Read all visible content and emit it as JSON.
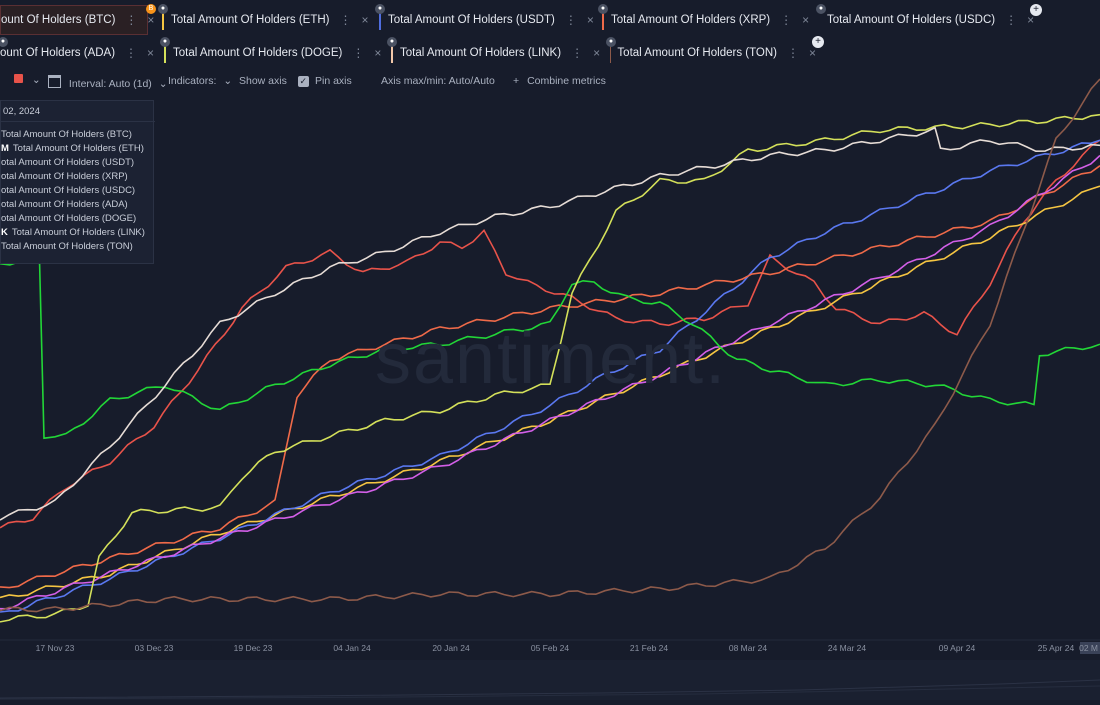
{
  "tabs_row1": [
    {
      "label": "Total Amount Of Holders (BTC)",
      "color": "#e8534a",
      "active": true,
      "badge": "B",
      "badge_color": "#f7931a",
      "partial": "ount Of Holders (BTC)"
    },
    {
      "label": "Total Amount Of Holders (ETH)",
      "color": "#f5c542"
    },
    {
      "label": "Total Amount Of Holders (USDT)",
      "color": "#4f6dde"
    },
    {
      "label": "Total Amount Of Holders (XRP)",
      "color": "#ef6a49"
    },
    {
      "label": "Total Amount Of Holders (USDC)",
      "color": "#d35fe8"
    }
  ],
  "tabs_row2": [
    {
      "label": "Total Amount Of Holders (ADA)",
      "color": "#3a4cd0",
      "partial": "ount Of Holders (ADA)"
    },
    {
      "label": "Total Amount Of Holders (DOGE)",
      "color": "#d4e05a"
    },
    {
      "label": "Total Amount Of Holders (LINK)",
      "color": "#f2c7a9"
    },
    {
      "label": "Total Amount Of Holders (TON)",
      "color": "#8d5a4a"
    }
  ],
  "toolbar": {
    "interval": "Interval: Auto (1d)",
    "indicators": "Indicators:",
    "show_axis": "Show axis",
    "pin_axis": "Pin axis",
    "axis_maxmin": "Axis max/min: Auto/Auto",
    "combine": "Combine metrics",
    "plus": "+",
    "color_swatch": "#e8534a"
  },
  "tooltip": {
    "date": "02, 2024",
    "items": [
      {
        "prefix": "",
        "label": "Total Amount Of Holders (BTC)"
      },
      {
        "prefix": "M",
        "label": "Total Amount Of Holders (ETH)"
      },
      {
        "prefix": "",
        "label": "otal Amount Of Holders (USDT)"
      },
      {
        "prefix": "",
        "label": "otal Amount Of Holders (XRP)"
      },
      {
        "prefix": "",
        "label": "otal Amount Of Holders (USDC)"
      },
      {
        "prefix": "",
        "label": "otal Amount Of Holders (ADA)"
      },
      {
        "prefix": "",
        "label": "otal Amount Of Holders (DOGE)"
      },
      {
        "prefix": "K",
        "label": "Total Amount Of Holders (LINK)"
      },
      {
        "prefix": "",
        "label": "Total Amount Of Holders (TON)"
      }
    ]
  },
  "watermark": "santiment.",
  "icons": {
    "dots": "⋮",
    "close": "×",
    "add": "+",
    "lock": "●",
    "checkmark": "✓",
    "caret": "⌄"
  },
  "chart_data": {
    "type": "line",
    "x_ticks": [
      "17 Nov 23",
      "03 Dec 23",
      "19 Dec 23",
      "04 Jan 24",
      "20 Jan 24",
      "05 Feb 24",
      "21 Feb 24",
      "08 Mar 24",
      "24 Mar 24",
      "09 Apr 24",
      "25 Apr 24",
      "02 M"
    ],
    "x_tick_pos": [
      0.05,
      0.14,
      0.23,
      0.32,
      0.41,
      0.5,
      0.59,
      0.68,
      0.77,
      0.87,
      0.96,
      1.0
    ],
    "ylim": [
      0,
      100
    ],
    "series": [
      {
        "name": "Total Amount Of Holders (BTC)",
        "color": "#e8534a",
        "points": [
          [
            0,
            22
          ],
          [
            0.03,
            24
          ],
          [
            0.06,
            30
          ],
          [
            0.1,
            35
          ],
          [
            0.14,
            42
          ],
          [
            0.18,
            53
          ],
          [
            0.22,
            65
          ],
          [
            0.26,
            73
          ],
          [
            0.3,
            76
          ],
          [
            0.33,
            72
          ],
          [
            0.37,
            74
          ],
          [
            0.4,
            78
          ],
          [
            0.42,
            77
          ],
          [
            0.44,
            80
          ],
          [
            0.46,
            72
          ],
          [
            0.48,
            70
          ],
          [
            0.52,
            67
          ],
          [
            0.56,
            63
          ],
          [
            0.6,
            62
          ],
          [
            0.64,
            63
          ],
          [
            0.68,
            66
          ],
          [
            0.7,
            75
          ],
          [
            0.74,
            70
          ],
          [
            0.76,
            65
          ],
          [
            0.8,
            62
          ],
          [
            0.84,
            64
          ],
          [
            0.87,
            60
          ],
          [
            0.9,
            70
          ],
          [
            0.93,
            82
          ],
          [
            0.96,
            90
          ],
          [
            1.0,
            98
          ]
        ]
      },
      {
        "name": "Total Amount Of Holders (ETH)",
        "color": "#f5c542",
        "points": [
          [
            0,
            8
          ],
          [
            0.1,
            13
          ],
          [
            0.2,
            21
          ],
          [
            0.3,
            28
          ],
          [
            0.4,
            35
          ],
          [
            0.5,
            43
          ],
          [
            0.6,
            52
          ],
          [
            0.7,
            61
          ],
          [
            0.8,
            70
          ],
          [
            0.9,
            79
          ],
          [
            0.95,
            84
          ],
          [
            1.0,
            89
          ]
        ]
      },
      {
        "name": "Total Amount Of Holders (USDT)",
        "color": "#5a78f0",
        "points": [
          [
            0,
            5
          ],
          [
            0.1,
            12
          ],
          [
            0.2,
            20
          ],
          [
            0.3,
            29
          ],
          [
            0.4,
            36
          ],
          [
            0.45,
            41
          ],
          [
            0.5,
            46
          ],
          [
            0.55,
            52
          ],
          [
            0.6,
            57
          ],
          [
            0.65,
            66
          ],
          [
            0.7,
            75
          ],
          [
            0.75,
            80
          ],
          [
            0.8,
            84
          ],
          [
            0.85,
            88
          ],
          [
            0.9,
            92
          ],
          [
            0.95,
            95
          ],
          [
            1.0,
            98
          ]
        ]
      },
      {
        "name": "Total Amount Of Holders (XRP)",
        "color": "#ef6a49",
        "points": [
          [
            0,
            10
          ],
          [
            0.1,
            16
          ],
          [
            0.2,
            22
          ],
          [
            0.25,
            27
          ],
          [
            0.27,
            48
          ],
          [
            0.3,
            55
          ],
          [
            0.35,
            58
          ],
          [
            0.4,
            61
          ],
          [
            0.5,
            65
          ],
          [
            0.6,
            68
          ],
          [
            0.7,
            72
          ],
          [
            0.8,
            77
          ],
          [
            0.9,
            82
          ],
          [
            1.0,
            93
          ]
        ]
      },
      {
        "name": "Total Amount Of Holders (USDC)",
        "color": "#d35fe8",
        "points": [
          [
            0,
            6
          ],
          [
            0.1,
            13
          ],
          [
            0.2,
            20
          ],
          [
            0.3,
            27
          ],
          [
            0.4,
            34
          ],
          [
            0.5,
            43
          ],
          [
            0.6,
            52
          ],
          [
            0.7,
            62
          ],
          [
            0.8,
            71
          ],
          [
            0.9,
            81
          ],
          [
            0.95,
            88
          ],
          [
            1.0,
            95
          ]
        ]
      },
      {
        "name": "Total Amount Of Holders (ADA)",
        "color": "#22d637",
        "points": [
          [
            0,
            74
          ],
          [
            0.036,
            74
          ],
          [
            0.04,
            40
          ],
          [
            0.06,
            40
          ],
          [
            0.1,
            47
          ],
          [
            0.15,
            50
          ],
          [
            0.2,
            45
          ],
          [
            0.25,
            50
          ],
          [
            0.3,
            54
          ],
          [
            0.35,
            57
          ],
          [
            0.4,
            58
          ],
          [
            0.45,
            60
          ],
          [
            0.5,
            62
          ],
          [
            0.52,
            70
          ],
          [
            0.54,
            70
          ],
          [
            0.57,
            67
          ],
          [
            0.6,
            66
          ],
          [
            0.63,
            62
          ],
          [
            0.67,
            55
          ],
          [
            0.7,
            53
          ],
          [
            0.75,
            50
          ],
          [
            0.8,
            51
          ],
          [
            0.85,
            50
          ],
          [
            0.9,
            47
          ],
          [
            0.94,
            46
          ],
          [
            0.945,
            56
          ],
          [
            1.0,
            58
          ]
        ]
      },
      {
        "name": "Total Amount Of Holders (DOGE)",
        "color": "#d4e05a",
        "points": [
          [
            0,
            4
          ],
          [
            0.05,
            5
          ],
          [
            0.08,
            7
          ],
          [
            0.09,
            16
          ],
          [
            0.12,
            25
          ],
          [
            0.2,
            26
          ],
          [
            0.22,
            32
          ],
          [
            0.25,
            37
          ],
          [
            0.3,
            40
          ],
          [
            0.35,
            43
          ],
          [
            0.4,
            45
          ],
          [
            0.45,
            48
          ],
          [
            0.5,
            50
          ],
          [
            0.52,
            68
          ],
          [
            0.56,
            84
          ],
          [
            0.6,
            90
          ],
          [
            0.64,
            90
          ],
          [
            0.68,
            96
          ],
          [
            0.75,
            98
          ],
          [
            0.8,
            100
          ],
          [
            0.9,
            101
          ],
          [
            0.96,
            102
          ],
          [
            1.0,
            103
          ]
        ]
      },
      {
        "name": "Total Amount Of Holders (LINK)",
        "color": "#e6dcd6",
        "points": [
          [
            0,
            24
          ],
          [
            0.05,
            27
          ],
          [
            0.1,
            38
          ],
          [
            0.15,
            50
          ],
          [
            0.2,
            62
          ],
          [
            0.25,
            68
          ],
          [
            0.3,
            73
          ],
          [
            0.35,
            76
          ],
          [
            0.4,
            80
          ],
          [
            0.45,
            83
          ],
          [
            0.5,
            85
          ],
          [
            0.55,
            88
          ],
          [
            0.6,
            91
          ],
          [
            0.65,
            93
          ],
          [
            0.7,
            95
          ],
          [
            0.75,
            96
          ],
          [
            0.8,
            98
          ],
          [
            0.85,
            100
          ],
          [
            0.855,
            96
          ],
          [
            0.9,
            98
          ],
          [
            0.95,
            96
          ],
          [
            1.0,
            97
          ]
        ]
      },
      {
        "name": "Total Amount Of Holders (TON)",
        "color": "#8d5a4a",
        "points": [
          [
            0,
            6
          ],
          [
            0.05,
            6
          ],
          [
            0.1,
            7
          ],
          [
            0.15,
            8
          ],
          [
            0.2,
            8
          ],
          [
            0.3,
            8
          ],
          [
            0.4,
            9
          ],
          [
            0.5,
            9
          ],
          [
            0.6,
            10
          ],
          [
            0.7,
            12
          ],
          [
            0.75,
            18
          ],
          [
            0.8,
            28
          ],
          [
            0.85,
            42
          ],
          [
            0.9,
            62
          ],
          [
            0.93,
            80
          ],
          [
            0.96,
            98
          ],
          [
            1.0,
            110
          ]
        ]
      }
    ]
  }
}
